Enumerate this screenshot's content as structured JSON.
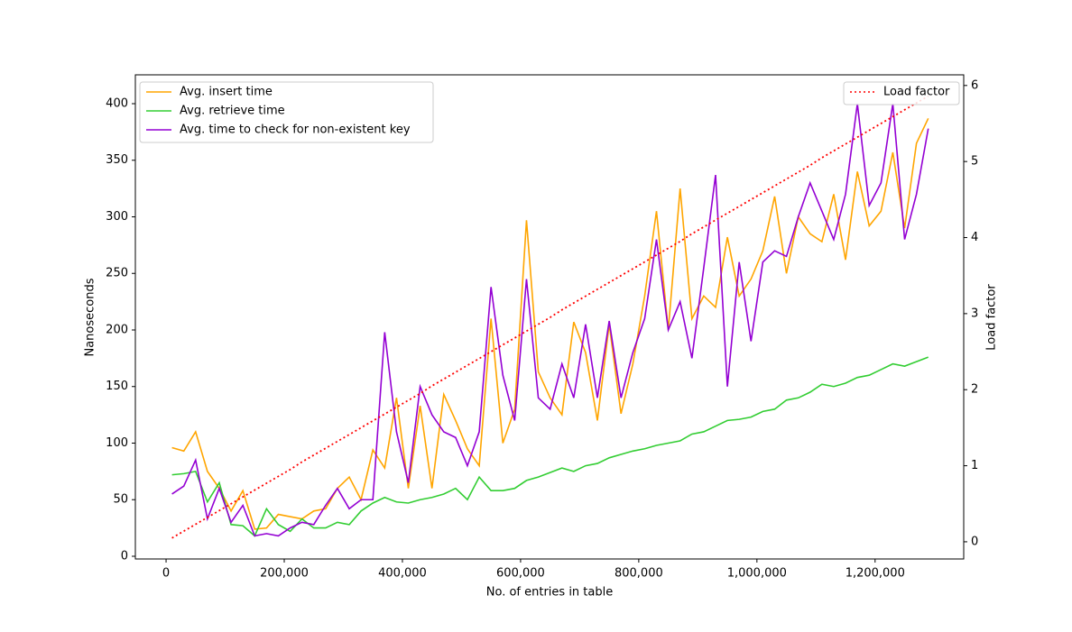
{
  "chart_data": {
    "type": "line",
    "xlabel": "No. of entries in table",
    "ylabel": "Nanoseconds",
    "y2label": "Load factor",
    "y2label_color": "#ff0000",
    "x": [
      10000,
      30000,
      50000,
      70000,
      90000,
      110000,
      130000,
      150000,
      170000,
      190000,
      210000,
      230000,
      250000,
      270000,
      290000,
      310000,
      330000,
      350000,
      370000,
      390000,
      410000,
      430000,
      450000,
      470000,
      490000,
      510000,
      530000,
      550000,
      570000,
      590000,
      610000,
      630000,
      650000,
      670000,
      690000,
      710000,
      730000,
      750000,
      770000,
      790000,
      810000,
      830000,
      850000,
      870000,
      890000,
      910000,
      930000,
      950000,
      970000,
      990000,
      1010000,
      1030000,
      1050000,
      1070000,
      1090000,
      1110000,
      1130000,
      1150000,
      1170000,
      1190000,
      1210000,
      1230000,
      1250000,
      1270000,
      1290000
    ],
    "series": [
      {
        "name": "Avg. insert time",
        "color": "#ffa500",
        "values": [
          96,
          93,
          110,
          75,
          60,
          40,
          58,
          24,
          25,
          37,
          35,
          33,
          40,
          42,
          60,
          70,
          50,
          94,
          78,
          140,
          60,
          133,
          60,
          143,
          120,
          95,
          80,
          210,
          100,
          130,
          297,
          163,
          140,
          125,
          207,
          180,
          120,
          205,
          126,
          170,
          230,
          305,
          200,
          325,
          210,
          230,
          220,
          282,
          230,
          245,
          270,
          318,
          250,
          300,
          285,
          278,
          320,
          262,
          340,
          292,
          305,
          357,
          290,
          365,
          387
        ]
      },
      {
        "name": "Avg. retrieve time",
        "color": "#32cd32",
        "values": [
          72,
          73,
          75,
          48,
          65,
          28,
          27,
          18,
          42,
          28,
          22,
          33,
          25,
          25,
          30,
          28,
          40,
          47,
          52,
          48,
          47,
          50,
          52,
          55,
          60,
          50,
          70,
          58,
          58,
          60,
          67,
          70,
          74,
          78,
          75,
          80,
          82,
          87,
          90,
          93,
          95,
          98,
          100,
          102,
          108,
          110,
          115,
          120,
          121,
          123,
          128,
          130,
          138,
          140,
          145,
          152,
          150,
          153,
          158,
          160,
          165,
          170,
          168,
          172,
          176
        ]
      },
      {
        "name": "Avg. time to check for non-existent key",
        "color": "#9400d3",
        "values": [
          55,
          62,
          85,
          33,
          60,
          30,
          45,
          18,
          20,
          18,
          25,
          30,
          28,
          45,
          60,
          42,
          50,
          50,
          198,
          110,
          65,
          150,
          125,
          110,
          105,
          80,
          110,
          238,
          160,
          120,
          245,
          140,
          130,
          170,
          140,
          205,
          140,
          208,
          140,
          180,
          210,
          280,
          200,
          225,
          175,
          255,
          337,
          150,
          260,
          190,
          260,
          270,
          265,
          300,
          330,
          305,
          280,
          320,
          400,
          310,
          330,
          400,
          280,
          320,
          378
        ]
      },
      {
        "name": "Load factor",
        "color": "#ff0000",
        "axis": "y2",
        "dash": "dotted",
        "values": [
          0.05,
          0.14,
          0.23,
          0.32,
          0.41,
          0.5,
          0.59,
          0.68,
          0.77,
          0.86,
          0.95,
          1.05,
          1.14,
          1.23,
          1.32,
          1.41,
          1.5,
          1.59,
          1.68,
          1.77,
          1.86,
          1.95,
          2.05,
          2.14,
          2.23,
          2.32,
          2.41,
          2.5,
          2.59,
          2.68,
          2.77,
          2.86,
          2.95,
          3.05,
          3.14,
          3.23,
          3.32,
          3.41,
          3.5,
          3.59,
          3.68,
          3.77,
          3.86,
          3.95,
          4.05,
          4.14,
          4.23,
          4.32,
          4.41,
          4.5,
          4.59,
          4.68,
          4.77,
          4.86,
          4.95,
          5.05,
          5.14,
          5.23,
          5.32,
          5.41,
          5.5,
          5.59,
          5.68,
          5.77,
          5.86
        ]
      }
    ],
    "xlim": [
      -52000,
      1350000
    ],
    "xticks": [
      0,
      {
        "value": 200000,
        "label": "200,000"
      },
      {
        "value": 400000,
        "label": "400,000"
      },
      {
        "value": 600000,
        "label": "600,000"
      },
      {
        "value": 800000,
        "label": "800,000"
      },
      {
        "value": 1000000,
        "label": "1,000,000"
      },
      {
        "value": 1200000,
        "label": "1,200,000"
      }
    ],
    "ylim": [
      -2.4,
      425.5
    ],
    "yticks": [
      0,
      50,
      100,
      150,
      200,
      250,
      300,
      350,
      400
    ],
    "y2lim": [
      -0.226,
      6.14
    ],
    "y2ticks": [
      0,
      1,
      2,
      3,
      4,
      5,
      6
    ],
    "legend": "upper left",
    "legend_y2": "upper right"
  }
}
